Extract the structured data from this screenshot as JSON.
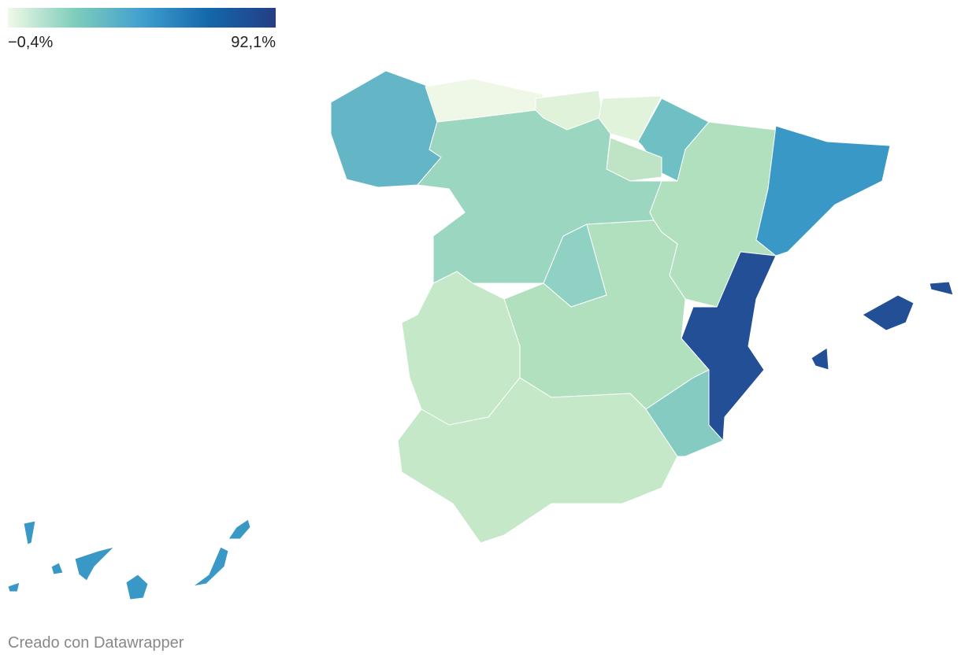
{
  "legend": {
    "min": {
      "value": -0.4,
      "label": "−0,4%"
    },
    "max": {
      "value": 92.1,
      "label": "92,1%"
    },
    "colors": [
      "#f0f9e8",
      "#7fcdbb",
      "#41a0cf",
      "#1367ab",
      "#253e85"
    ]
  },
  "credit": "Creado con Datawrapper"
}
